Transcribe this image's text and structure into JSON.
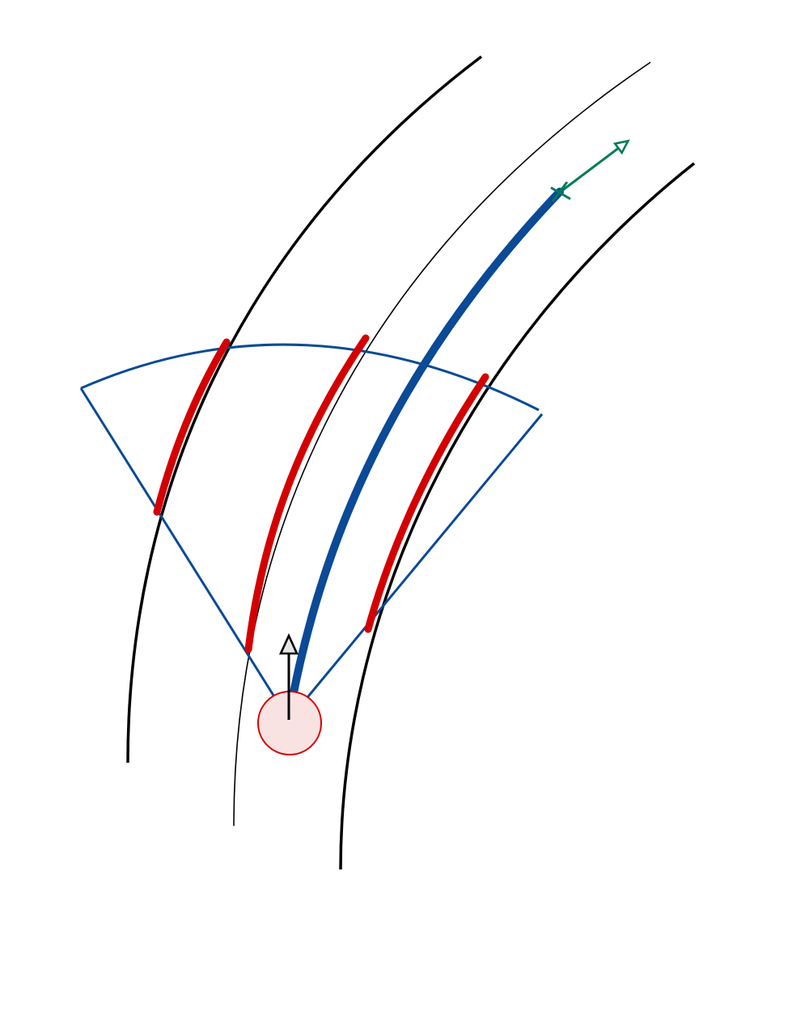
{
  "diagram": {
    "description_elements": {
      "lane_boundary_color": "#000000",
      "sensor_fov_color": "#0A4A96",
      "detected_segment_color": "#D40000",
      "planned_path_color": "#0A4A96",
      "goal_marker_color": "#007A5A",
      "ego_circle_fill": "#F9E2E2",
      "ego_circle_stroke": "#D40000",
      "heading_arrow_fill": "#E6E6E6"
    },
    "icons": {
      "goal": "cross-marker-icon",
      "goal_direction": "arrow-icon",
      "heading": "arrow-up-icon"
    }
  }
}
